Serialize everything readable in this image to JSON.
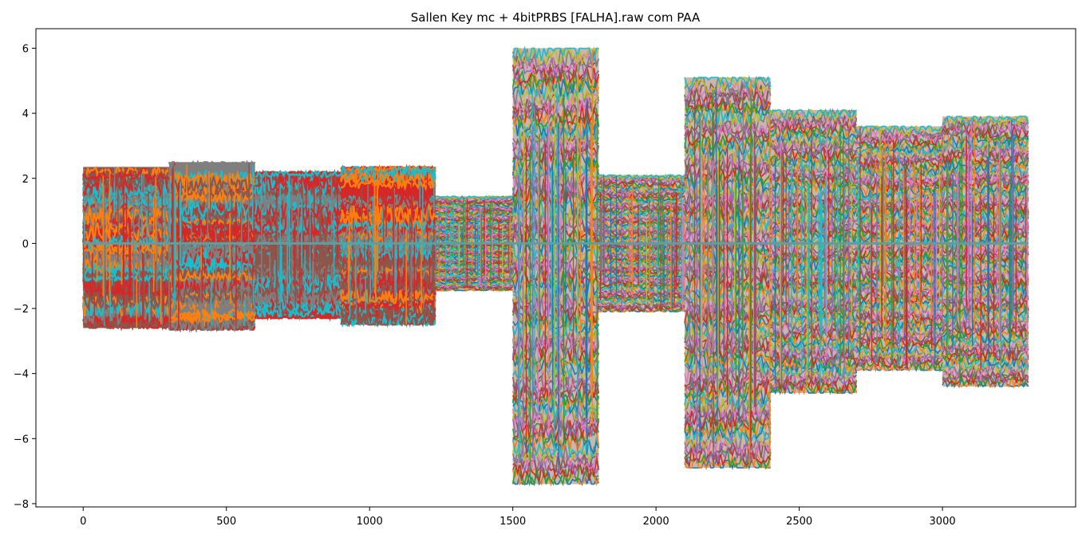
{
  "chart_data": {
    "type": "line",
    "title": "Sallen Key mc + 4bitPRBS [FALHA].raw com PAA",
    "xlabel": "",
    "ylabel": "",
    "xlim": [
      -165,
      3465
    ],
    "ylim": [
      -8.1,
      6.6
    ],
    "xticks": [
      0,
      500,
      1000,
      1500,
      2000,
      2500,
      3000
    ],
    "yticks": [
      6,
      4,
      2,
      0,
      -2,
      -4,
      -6,
      -8
    ],
    "grid": false,
    "legend": "none",
    "palette": [
      "#1f77b4",
      "#ff7f0e",
      "#2ca02c",
      "#d62728",
      "#9467bd",
      "#8c564b",
      "#e377c2",
      "#7f7f7f",
      "#bcbd22",
      "#17becf"
    ],
    "segments": [
      {
        "x": [
          0,
          300
        ],
        "ymin": -2.6,
        "ymax": 2.35,
        "style": "bands",
        "dominant": [
          "#8c564b",
          "#ff7f0e",
          "#d62728",
          "#17becf",
          "#7f7f7f"
        ]
      },
      {
        "x": [
          300,
          600
        ],
        "ymin": -2.65,
        "ymax": 2.5,
        "style": "bands",
        "dominant": [
          "#7f7f7f",
          "#17becf",
          "#ff7f0e",
          "#d62728",
          "#8c564b"
        ]
      },
      {
        "x": [
          600,
          900
        ],
        "ymin": -2.3,
        "ymax": 2.2,
        "style": "bands",
        "dominant": [
          "#8c564b",
          "#d62728",
          "#7f7f7f",
          "#17becf"
        ]
      },
      {
        "x": [
          900,
          1230
        ],
        "ymin": -2.5,
        "ymax": 2.35,
        "style": "bands",
        "dominant": [
          "#d62728",
          "#7f7f7f",
          "#17becf",
          "#ff7f0e",
          "#8c564b"
        ]
      },
      {
        "x": [
          1230,
          1500
        ],
        "ymin": -1.45,
        "ymax": 1.45,
        "style": "noise"
      },
      {
        "x": [
          1500,
          1800
        ],
        "ymin": -7.4,
        "ymax": 6.0,
        "style": "noise"
      },
      {
        "x": [
          1800,
          2100
        ],
        "ymin": -2.1,
        "ymax": 2.1,
        "style": "noise"
      },
      {
        "x": [
          2100,
          2400
        ],
        "ymin": -6.9,
        "ymax": 5.1,
        "style": "noise"
      },
      {
        "x": [
          2400,
          2700
        ],
        "ymin": -4.6,
        "ymax": 4.1,
        "style": "noise"
      },
      {
        "x": [
          2700,
          3000
        ],
        "ymin": -3.9,
        "ymax": 3.6,
        "style": "noise"
      },
      {
        "x": [
          3000,
          3300
        ],
        "ymin": -4.4,
        "ymax": 3.9,
        "style": "noise"
      }
    ],
    "baseline": {
      "y": 0,
      "color": "#5f9ea0"
    }
  }
}
